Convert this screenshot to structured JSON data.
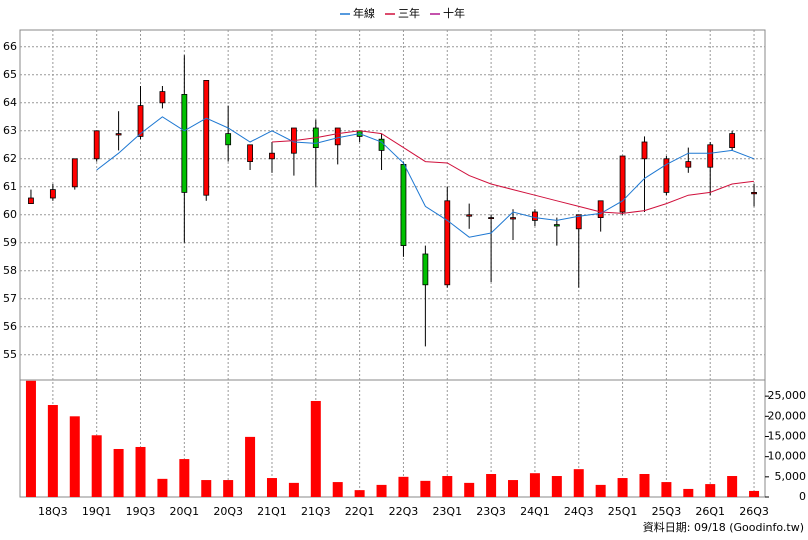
{
  "chart_data": {
    "type": "candlestick",
    "categories": [
      null,
      "18Q3",
      null,
      "19Q1",
      null,
      "19Q3",
      null,
      "20Q1",
      null,
      "20Q3",
      null,
      "21Q1",
      null,
      "21Q3",
      null,
      "22Q1",
      null,
      "22Q3",
      null,
      "23Q1",
      null,
      "23Q3",
      null,
      "24Q1",
      null,
      "24Q3",
      null,
      "25Q1",
      null,
      "25Q3",
      null,
      "26Q1",
      null,
      "26Q3"
    ],
    "open": [
      60.4,
      60.6,
      61.0,
      62.0,
      62.85,
      62.8,
      64.0,
      64.3,
      60.7,
      62.9,
      61.9,
      62.0,
      62.2,
      63.1,
      62.5,
      63.0,
      62.7,
      61.8,
      58.6,
      57.5,
      59.95,
      59.9,
      59.85,
      59.8,
      59.65,
      59.5,
      59.9,
      60.1,
      62.0,
      60.8,
      61.7,
      61.7,
      62.4,
      60.75
    ],
    "high": [
      60.9,
      61.1,
      62.0,
      63.0,
      63.7,
      64.6,
      64.6,
      65.7,
      64.8,
      63.9,
      62.5,
      62.6,
      63.1,
      63.4,
      63.1,
      63.0,
      62.9,
      61.9,
      58.9,
      61.0,
      60.4,
      60.0,
      60.2,
      60.2,
      59.9,
      60.0,
      60.5,
      62.1,
      62.8,
      62.1,
      62.4,
      62.6,
      63.0,
      61.1
    ],
    "low": [
      60.4,
      60.5,
      60.9,
      61.9,
      62.3,
      62.7,
      63.8,
      59.0,
      60.5,
      61.9,
      61.6,
      61.5,
      61.4,
      61.0,
      61.8,
      62.6,
      61.6,
      58.5,
      55.3,
      57.4,
      59.5,
      57.6,
      59.1,
      59.6,
      58.9,
      57.4,
      59.4,
      60.0,
      60.1,
      60.7,
      61.5,
      60.7,
      62.3,
      60.3
    ],
    "close": [
      60.6,
      60.9,
      62.0,
      63.0,
      62.9,
      63.9,
      64.4,
      60.8,
      64.8,
      62.5,
      62.5,
      62.2,
      63.1,
      62.4,
      63.1,
      62.8,
      62.3,
      58.9,
      57.5,
      60.5,
      60.0,
      59.9,
      59.9,
      60.1,
      59.6,
      60.0,
      60.5,
      62.1,
      62.6,
      62.0,
      61.9,
      62.5,
      62.9,
      60.8
    ],
    "up_color": "#ff0000",
    "down_color": "#00c000",
    "series": [
      {
        "name": "年線",
        "color": "#1e78d2",
        "values": [
          null,
          null,
          null,
          61.6,
          62.2,
          62.9,
          63.5,
          63.0,
          63.45,
          63.1,
          62.6,
          63.0,
          62.6,
          62.55,
          62.75,
          62.9,
          62.6,
          61.85,
          60.3,
          59.8,
          59.2,
          59.35,
          60.1,
          59.9,
          59.8,
          59.95,
          60.05,
          60.5,
          61.3,
          61.8,
          62.2,
          62.2,
          62.3,
          62.0
        ]
      },
      {
        "name": "三年",
        "color": "#d0103c",
        "values": [
          null,
          null,
          null,
          null,
          null,
          null,
          null,
          null,
          null,
          null,
          null,
          62.6,
          62.65,
          62.75,
          62.9,
          63.0,
          62.9,
          62.4,
          61.9,
          61.85,
          61.4,
          61.1,
          60.9,
          60.7,
          60.5,
          60.3,
          60.1,
          60.05,
          60.15,
          60.4,
          60.7,
          60.8,
          61.1,
          61.2
        ]
      },
      {
        "name": "十年",
        "color": "#b01890",
        "values": [
          null,
          null,
          null,
          null,
          null,
          null,
          null,
          null,
          null,
          null,
          null,
          null,
          null,
          null,
          null,
          null,
          null,
          null,
          null,
          null,
          null,
          null,
          null,
          null,
          null,
          null,
          null,
          null,
          null,
          null,
          null,
          null,
          null,
          null
        ]
      }
    ],
    "volume": {
      "color": "#ff0000",
      "axis": "y2",
      "values": [
        28800,
        22800,
        20000,
        15300,
        11900,
        12400,
        4500,
        9400,
        4200,
        4200,
        14900,
        4700,
        3500,
        23800,
        3700,
        1700,
        3000,
        5000,
        4000,
        5200,
        3500,
        5700,
        4200,
        5900,
        5200,
        6900,
        3000,
        4700,
        5700,
        3700,
        2000,
        3200,
        5200,
        1500
      ]
    },
    "ylim": [
      54.1,
      66.6
    ],
    "yticks": [
      55,
      56,
      57,
      58,
      59,
      60,
      61,
      62,
      63,
      64,
      65,
      66
    ],
    "y2lim": [
      0,
      29000
    ],
    "y2ticks": [
      0,
      {
        "value": 5000,
        "label": "5,000"
      },
      {
        "value": 10000,
        "label": "10,000"
      },
      {
        "value": 15000,
        "label": "15,000"
      },
      {
        "value": 20000,
        "label": "20,000"
      },
      {
        "value": 25000,
        "label": "25,000"
      }
    ],
    "grid": true,
    "note": "資料日期: 09/18 (Goodinfo.tw)"
  }
}
